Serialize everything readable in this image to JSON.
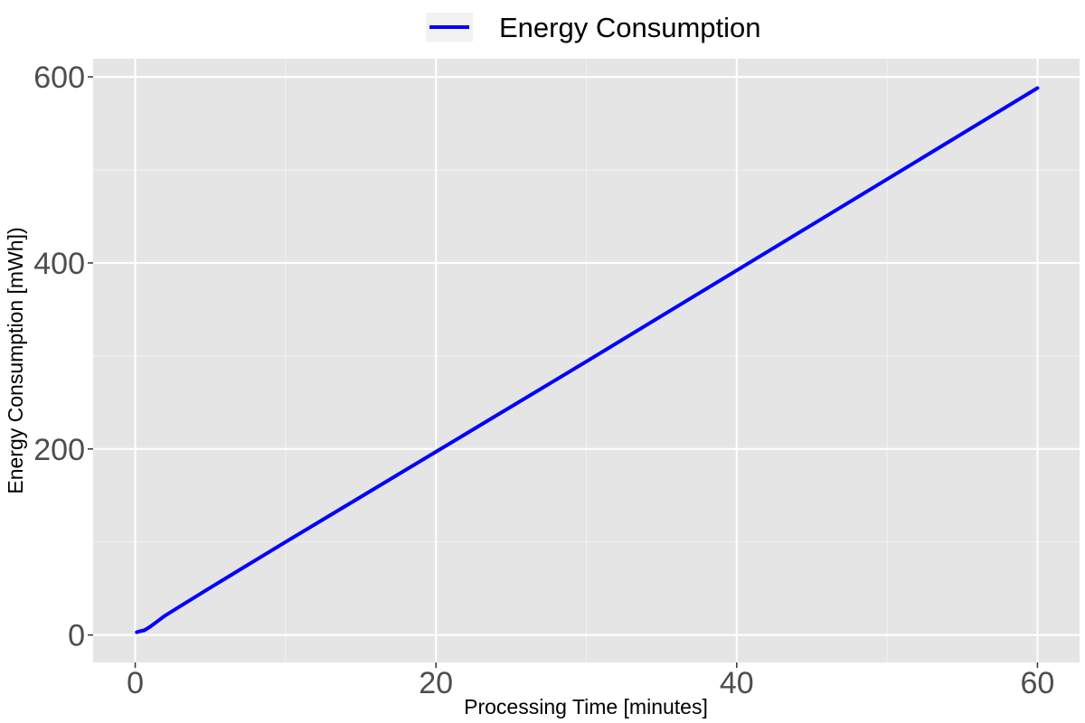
{
  "chart_data": {
    "type": "line",
    "xlabel": "Processing Time [minutes]",
    "ylabel": "Energy Consumption [mWh])",
    "xlim": [
      -2.8,
      62.8
    ],
    "ylim": [
      -29.5,
      619.5
    ],
    "x_ticks": [
      0,
      20,
      40,
      60
    ],
    "x_tick_labels": [
      "0",
      "20",
      "40",
      "60"
    ],
    "y_ticks": [
      0,
      200,
      400,
      600
    ],
    "y_tick_labels": [
      "0",
      "200",
      "400",
      "600"
    ],
    "grid": true,
    "legend_position": "top",
    "series": [
      {
        "name": "Energy Consumption",
        "color": "#0000ff",
        "x": [
          0.1,
          0.3,
          0.6,
          1,
          1.5,
          2,
          3,
          5,
          10,
          20,
          30,
          40,
          50,
          60
        ],
        "y": [
          3,
          4,
          5,
          9,
          15,
          21,
          31,
          51,
          100,
          197,
          294,
          392,
          490,
          588
        ]
      }
    ]
  }
}
